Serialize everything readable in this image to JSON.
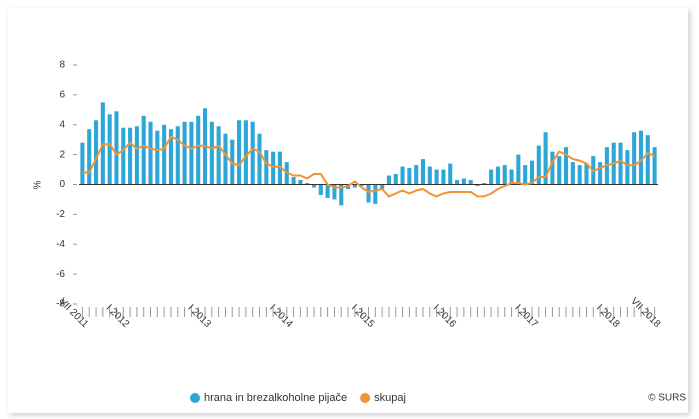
{
  "chart_data": {
    "type": "bar-line",
    "y_label": "%",
    "source": "© SURS",
    "categories": [
      "VII 2011",
      null,
      null,
      null,
      null,
      null,
      "I 2012",
      null,
      null,
      null,
      null,
      null,
      null,
      null,
      null,
      null,
      null,
      null,
      "I 2013",
      null,
      null,
      null,
      null,
      null,
      null,
      null,
      null,
      null,
      null,
      null,
      "I 2014",
      null,
      null,
      null,
      null,
      null,
      null,
      null,
      null,
      null,
      null,
      null,
      "I 2015",
      null,
      null,
      null,
      null,
      null,
      null,
      null,
      null,
      null,
      null,
      null,
      "I 2016",
      null,
      null,
      null,
      null,
      null,
      null,
      null,
      null,
      null,
      null,
      null,
      "I 2017",
      null,
      null,
      null,
      null,
      null,
      null,
      null,
      null,
      null,
      null,
      null,
      "I 2018",
      null,
      null,
      null,
      null,
      null,
      "VII 2018"
    ],
    "series": [
      {
        "name": "hrana in brezalkoholne pijače",
        "type": "bar",
        "color": "#2ea6d8",
        "values": [
          2.8,
          3.7,
          4.3,
          5.5,
          4.7,
          4.9,
          3.8,
          3.8,
          3.9,
          4.6,
          4.2,
          3.6,
          4.0,
          3.7,
          3.9,
          4.2,
          4.2,
          4.6,
          5.1,
          4.2,
          3.9,
          3.4,
          3.0,
          4.3,
          4.3,
          4.2,
          3.4,
          2.3,
          2.2,
          2.2,
          1.5,
          0.5,
          0.3,
          0.1,
          -0.2,
          -0.7,
          -0.9,
          -1.0,
          -1.4,
          -0.3,
          -0.2,
          -0.1,
          -1.2,
          -1.3,
          -0.3,
          0.6,
          0.7,
          1.2,
          1.1,
          1.3,
          1.7,
          1.2,
          1.0,
          1.0,
          1.4,
          0.3,
          0.4,
          0.3,
          -0.1,
          0.1,
          1.0,
          1.2,
          1.3,
          1.0,
          2.0,
          1.3,
          1.6,
          2.6,
          3.5,
          2.2,
          1.9,
          2.5,
          1.5,
          1.3,
          1.4,
          1.9,
          1.5,
          2.5,
          2.8,
          2.8,
          2.3,
          3.5,
          3.6,
          3.3,
          2.5
        ]
      },
      {
        "name": "skupaj",
        "type": "line",
        "color": "#f39230",
        "values": [
          0.8,
          0.8,
          1.7,
          2.7,
          2.7,
          2.0,
          2.3,
          2.8,
          2.4,
          2.6,
          2.4,
          2.3,
          2.4,
          3.2,
          3.0,
          2.6,
          2.4,
          2.6,
          2.6,
          2.4,
          2.6,
          2.0,
          1.4,
          1.3,
          1.9,
          2.4,
          2.2,
          1.4,
          1.2,
          1.2,
          0.8,
          0.6,
          0.6,
          0.4,
          0.7,
          0.7,
          0.0,
          -0.2,
          -0.2,
          -0.1,
          0.2,
          -0.2,
          -0.5,
          -0.4,
          -0.3,
          -0.8,
          -0.6,
          -0.4,
          -0.6,
          -0.4,
          -0.3,
          -0.6,
          -0.8,
          -0.6,
          -0.5,
          -0.5,
          -0.5,
          -0.5,
          -0.8,
          -0.8,
          -0.6,
          -0.3,
          -0.1,
          0.1,
          0.1,
          0.0,
          0.1,
          0.5,
          0.5,
          1.5,
          2.2,
          2.0,
          1.7,
          1.6,
          1.4,
          0.9,
          1.1,
          1.3,
          1.4,
          1.6,
          1.3,
          1.3,
          1.6,
          2.1,
          1.9
        ]
      }
    ],
    "ylim": [
      -8,
      8
    ],
    "yticks": [
      -8,
      -6,
      -4,
      -2,
      0,
      2,
      4,
      6,
      8
    ],
    "grid": false,
    "legend": "bottom"
  }
}
